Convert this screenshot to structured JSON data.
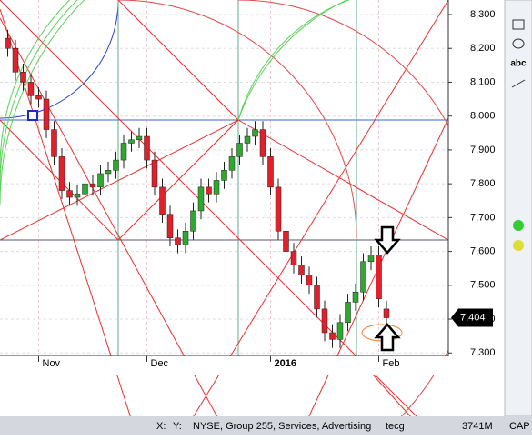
{
  "chart_data": {
    "type": "candlestick",
    "ylim": [
      7290,
      8343
    ],
    "yticks": [
      {
        "value": 7300,
        "label": "7,300"
      },
      {
        "value": 7400,
        "label": "7,400"
      },
      {
        "value": 7500,
        "label": "7,500"
      },
      {
        "value": 7600,
        "label": "7,600"
      },
      {
        "value": 7700,
        "label": "7,700"
      },
      {
        "value": 7800,
        "label": "7,800"
      },
      {
        "value": 7900,
        "label": "7,900"
      },
      {
        "value": 8000,
        "label": "8,000"
      },
      {
        "value": 8100,
        "label": "8,100"
      },
      {
        "value": 8200,
        "label": "8,200"
      },
      {
        "value": 8300,
        "label": "8,300"
      }
    ],
    "xlim": [
      -1,
      57
    ],
    "xticks": [
      {
        "value": 4,
        "label": "Nov"
      },
      {
        "value": 18,
        "label": "Dec"
      },
      {
        "value": 34,
        "label": "2016"
      },
      {
        "value": 48,
        "label": "Feb"
      }
    ],
    "up_color": "#2ea82e",
    "down_color": "#e0202a",
    "open": [
      8230,
      8200,
      8130,
      8100,
      8060,
      8050,
      7960,
      7880,
      7780,
      7760,
      7770,
      7800,
      7790,
      7830,
      7840,
      7870,
      7920,
      7930,
      7940,
      7870,
      7790,
      7710,
      7640,
      7620,
      7660,
      7720,
      7790,
      7770,
      7810,
      7840,
      7880,
      7920,
      7940,
      7960,
      7880,
      7790,
      7660,
      7600,
      7560,
      7530,
      7500,
      7430,
      7360,
      7340,
      7390,
      7450,
      7480,
      7570,
      7590,
      7430
    ],
    "high": [
      8255,
      8225,
      8155,
      8125,
      8085,
      8075,
      7985,
      7905,
      7805,
      7795,
      7825,
      7825,
      7855,
      7865,
      7895,
      7945,
      7955,
      7965,
      7965,
      7895,
      7815,
      7735,
      7665,
      7685,
      7745,
      7815,
      7815,
      7835,
      7865,
      7905,
      7945,
      7965,
      7985,
      7985,
      7905,
      7815,
      7685,
      7625,
      7585,
      7555,
      7525,
      7455,
      7385,
      7415,
      7475,
      7505,
      7595,
      7615,
      7615,
      7455
    ],
    "low": [
      8175,
      8105,
      8075,
      8035,
      8025,
      7935,
      7855,
      7755,
      7735,
      7735,
      7745,
      7765,
      7765,
      7805,
      7815,
      7845,
      7895,
      7905,
      7845,
      7765,
      7685,
      7615,
      7595,
      7595,
      7635,
      7695,
      7745,
      7745,
      7785,
      7815,
      7855,
      7895,
      7915,
      7855,
      7765,
      7635,
      7575,
      7535,
      7505,
      7475,
      7405,
      7335,
      7315,
      7315,
      7365,
      7425,
      7455,
      7545,
      7435,
      7379
    ],
    "close": [
      8200,
      8130,
      8100,
      8060,
      8050,
      7960,
      7880,
      7780,
      7760,
      7770,
      7800,
      7790,
      7830,
      7840,
      7870,
      7920,
      7930,
      7940,
      7870,
      7790,
      7710,
      7640,
      7620,
      7660,
      7720,
      7790,
      7770,
      7810,
      7840,
      7880,
      7920,
      7940,
      7960,
      7880,
      7790,
      7660,
      7600,
      7560,
      7530,
      7500,
      7430,
      7360,
      7340,
      7390,
      7450,
      7480,
      7570,
      7590,
      7460,
      7404
    ],
    "price_tag": {
      "value": 7404,
      "label": "7,404"
    }
  },
  "status_bar": {
    "x": "X:",
    "y": "Y:",
    "info": "NYSE, Group 255, Services, Advertising",
    "symbol": "tecg",
    "volume": "3741M",
    "cap": "CAP"
  },
  "toolbar": {
    "text_tool": "abc"
  }
}
